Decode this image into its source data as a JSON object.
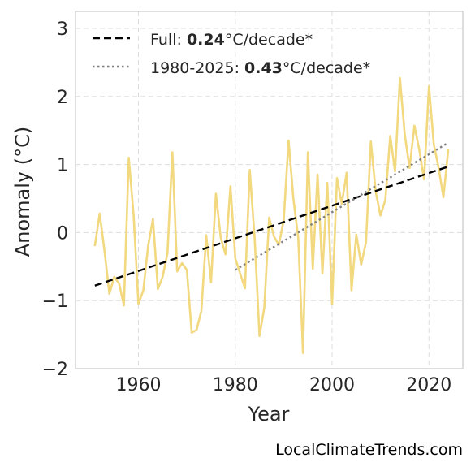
{
  "chart_data": {
    "type": "line",
    "xlabel": "Year",
    "ylabel": "Anomaly (°C)",
    "xlim": [
      1947,
      2027
    ],
    "ylim": [
      -2,
      3.25
    ],
    "x_ticks": [
      1960,
      1980,
      2000,
      2020
    ],
    "y_ticks": [
      -2,
      -1,
      0,
      1,
      2,
      3
    ],
    "y_tick_labels": [
      "−2",
      "−1",
      "0",
      "1",
      "2",
      "3"
    ],
    "grid": true,
    "legend_position": "top-left",
    "series": [
      {
        "color": "#f2d87e",
        "x": [
          1951,
          1952,
          1953,
          1954,
          1955,
          1956,
          1957,
          1958,
          1959,
          1960,
          1961,
          1962,
          1963,
          1964,
          1965,
          1966,
          1967,
          1968,
          1969,
          1970,
          1971,
          1972,
          1973,
          1974,
          1975,
          1976,
          1977,
          1978,
          1979,
          1980,
          1981,
          1982,
          1983,
          1984,
          1985,
          1986,
          1987,
          1988,
          1989,
          1990,
          1991,
          1992,
          1993,
          1994,
          1995,
          1996,
          1997,
          1998,
          1999,
          2000,
          2001,
          2002,
          2003,
          2004,
          2005,
          2006,
          2007,
          2008,
          2009,
          2010,
          2011,
          2012,
          2013,
          2014,
          2015,
          2016,
          2017,
          2018,
          2019,
          2020,
          2021,
          2022,
          2023,
          2024
        ],
        "y": [
          -0.2,
          0.28,
          -0.28,
          -0.9,
          -0.65,
          -0.75,
          -1.07,
          1.1,
          0.25,
          -1.05,
          -0.85,
          -0.2,
          0.2,
          -0.83,
          -0.65,
          -0.3,
          1.18,
          -0.57,
          -0.45,
          -0.55,
          -1.47,
          -1.43,
          -1.15,
          -0.04,
          -0.73,
          0.57,
          -0.08,
          -0.32,
          0.68,
          -0.38,
          -0.6,
          -0.82,
          0.92,
          -0.08,
          -1.52,
          -1.1,
          0.22,
          -0.06,
          -0.18,
          0.18,
          1.35,
          0.5,
          -0.08,
          -1.77,
          1.18,
          -0.53,
          0.85,
          -0.6,
          0.73,
          -1.05,
          0.8,
          0.42,
          0.88,
          -0.85,
          -0.03,
          -0.47,
          -0.14,
          1.34,
          0.6,
          0.25,
          0.48,
          1.42,
          0.9,
          2.27,
          1.45,
          0.95,
          1.57,
          1.22,
          0.78,
          2.15,
          1.3,
          0.95,
          0.52,
          1.22
        ]
      }
    ],
    "trends": [
      {
        "label_prefix": "Full: ",
        "rate": "0.24",
        "label_suffix": "°C/decade*",
        "style": "dashed",
        "color": "#000000",
        "x": [
          1951,
          2024
        ],
        "y": [
          -0.78,
          0.97
        ]
      },
      {
        "label_prefix": "1980-2025: ",
        "rate": "0.43",
        "label_suffix": "°C/decade*",
        "style": "dotted",
        "color": "#808080",
        "x": [
          1980,
          2024
        ],
        "y": [
          -0.55,
          1.32
        ]
      }
    ]
  },
  "credit": "LocalClimateTrends.com"
}
